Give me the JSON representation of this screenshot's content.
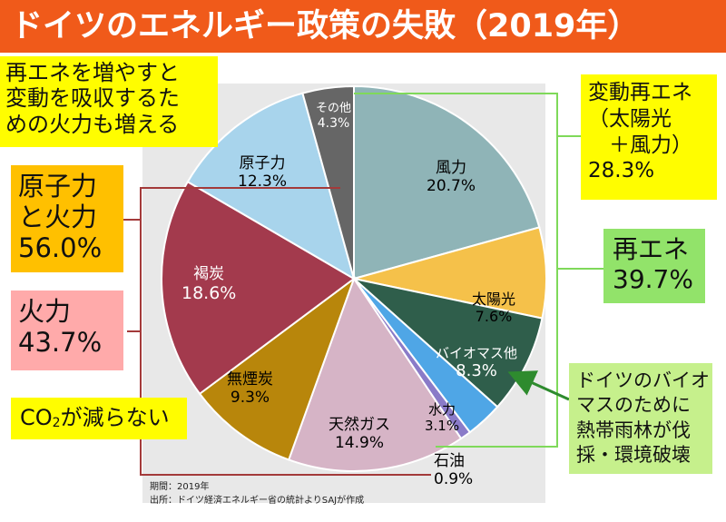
{
  "title": "ドイツのエネルギー政策の失敗（2019年）",
  "chart_data": {
    "type": "pie",
    "slices": [
      {
        "label": "風力",
        "value": 20.7,
        "display": "20.7%",
        "color": "#8fb4b7"
      },
      {
        "label": "太陽光",
        "value": 7.6,
        "display": "7.6%",
        "color": "#f5c14a"
      },
      {
        "label": "バイオマス他",
        "value": 8.3,
        "display": "8.3%",
        "color": "#2f5e4b"
      },
      {
        "label": "水力",
        "value": 3.1,
        "display": "3.1%",
        "color": "#4fa6e6"
      },
      {
        "label": "石油",
        "value": 0.9,
        "display": "0.9%",
        "color": "#8a7bc8"
      },
      {
        "label": "天然ガス",
        "value": 14.9,
        "display": "14.9%",
        "color": "#d6b4c6"
      },
      {
        "label": "無煙炭",
        "value": 9.3,
        "display": "9.3%",
        "color": "#b8860b"
      },
      {
        "label": "褐炭",
        "value": 18.6,
        "display": "18.6%",
        "color": "#a33a4d"
      },
      {
        "label": "原子力",
        "value": 12.3,
        "display": "12.3%",
        "color": "#a8d4ec"
      },
      {
        "label": "その他",
        "value": 4.3,
        "display": "4.3%",
        "color": "#666666"
      }
    ],
    "start": "12 o'clock",
    "direction": "clockwise"
  },
  "notes": {
    "renewable_absorb": [
      "再エネを増やすと",
      "変動を吸収するた",
      "めの火力も増える"
    ],
    "nuclear_thermal": [
      "原子力",
      "と火力",
      "56.0%"
    ],
    "thermal": [
      "火力",
      "43.7%"
    ],
    "co2_prefix": "CO",
    "co2_sub": "2",
    "co2_suffix": "が減らない",
    "variable_renewable": [
      "変動再エネ",
      "（太陽光",
      "　＋風力）",
      "28.3%"
    ],
    "renewable": [
      "再エネ",
      "39.7%"
    ],
    "biomass_note": [
      "ドイツのバイオ",
      "マスのために",
      "熱帯雨林が伐",
      "採・環境破壊"
    ]
  },
  "footer": {
    "period": "期間：2019年",
    "source": "出所：ドイツ経済エネルギー省の統計よりSAJが作成"
  },
  "colors": {
    "title_bg": "#f05a1a",
    "bracket_red": "#a33a3a",
    "bracket_green": "#7fd95a",
    "arrow_green": "#2e8b2e"
  }
}
